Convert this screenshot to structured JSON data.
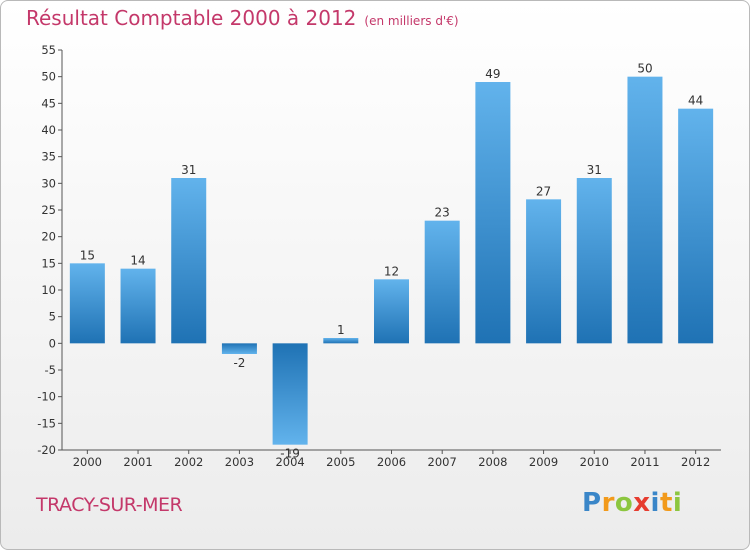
{
  "header": {
    "title": "Résultat Comptable 2000 à 2012",
    "subtitle": "(en milliers d'€)"
  },
  "footer": {
    "city": "TRACY-SUR-MER",
    "logo_letters": [
      "P",
      "r",
      "o",
      "x",
      "i",
      "t",
      "i"
    ],
    "logo_colors": [
      "#3a86c8",
      "#f29a1b",
      "#8cc63f",
      "#e63c2f",
      "#3a86c8",
      "#f29a1b",
      "#8cc63f"
    ]
  },
  "colors": {
    "bar_light": "#62b3ec",
    "bar_dark": "#1f72b4",
    "accent": "#c4386a"
  },
  "chart_data": {
    "type": "bar",
    "title": "Résultat Comptable 2000 à 2012",
    "subtitle": "(en milliers d'€)",
    "xlabel": "",
    "ylabel": "",
    "categories": [
      "2000",
      "2001",
      "2002",
      "2003",
      "2004",
      "2005",
      "2006",
      "2007",
      "2008",
      "2009",
      "2010",
      "2011",
      "2012"
    ],
    "values": [
      15,
      14,
      31,
      -2,
      -19,
      1,
      12,
      23,
      49,
      27,
      31,
      50,
      44
    ],
    "ylim": [
      -20,
      55
    ],
    "yticks": [
      -20,
      -15,
      -10,
      -5,
      0,
      5,
      10,
      15,
      20,
      25,
      30,
      35,
      40,
      45,
      50,
      55
    ],
    "grid": false,
    "legend": "none"
  }
}
